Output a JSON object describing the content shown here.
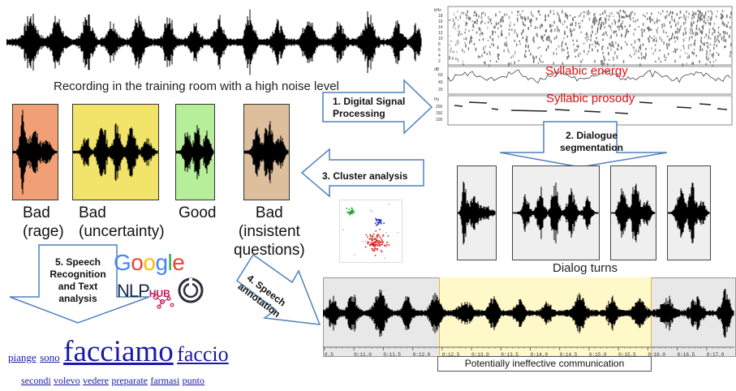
{
  "top_recording": {
    "caption": "Recording in the training room with a high noise level"
  },
  "clusters": [
    {
      "label_line1": "Bad",
      "label_line2": "(rage)",
      "color": "#f0a074"
    },
    {
      "label_line1": "Bad",
      "label_line2": "(uncertainty)",
      "color": "#f2e46a"
    },
    {
      "label_line1": "Good",
      "label_line2": "",
      "color": "#b6ee9a"
    },
    {
      "label_line1": "Bad",
      "label_line2": "(insistent",
      "label_line3": "questions)",
      "color": "#ddbf9e"
    }
  ],
  "steps": {
    "step1": {
      "line1": "1. Digital Signal",
      "line2": "Processing"
    },
    "step2": {
      "line1": "2. Dialogue",
      "line2": "segmentation"
    },
    "step3": {
      "line1": "3. Cluster analysis"
    },
    "step4": {
      "line1": "4. Speech",
      "line2": "annotation"
    },
    "step5": {
      "line1": "5. Speech",
      "line2": "Recognition",
      "line3": "and Text",
      "line4": "analysis"
    }
  },
  "spectrogram": {
    "energy_label": "Syllabic energy",
    "prosody_label": "Syllabic prosody",
    "freq_unit": "kHz",
    "freq_ticks": [
      "18",
      "16",
      "14",
      "12",
      "10",
      "8",
      "6",
      "4",
      "2"
    ],
    "energy_unit": "dB",
    "energy_ticks": [
      "60",
      "40",
      "20"
    ],
    "pitch_unit": "Hz",
    "pitch_ticks": [
      "200",
      "150",
      "100"
    ]
  },
  "dialog_turns": {
    "caption": "Dialog turns"
  },
  "annotation": {
    "caption": "Potentially ineffective communication",
    "timeline_ticks": [
      "0.5",
      "0:11.0",
      "0:11.5",
      "0:12.0",
      "0:12.5",
      "0:13.0",
      "0:13.5",
      "0:14.0",
      "0:14.5",
      "0:15.0",
      "0:15.5",
      "0:16.0",
      "0:16.5",
      "0:17.0"
    ],
    "highlight_color": "#fff8c8"
  },
  "logos": {
    "google": [
      "G",
      "o",
      "o",
      "g",
      "l",
      "e"
    ],
    "google_colors": [
      "#4285F4",
      "#EA4335",
      "#FBBC05",
      "#4285F4",
      "#34A853",
      "#EA4335"
    ],
    "nlphub_part1": "NLP",
    "nlphub_part2": "HUB"
  },
  "words": {
    "row1": [
      {
        "text": "piange",
        "size": "small"
      },
      {
        "text": "sono",
        "size": "small"
      },
      {
        "text": "facciamo",
        "size": "large"
      },
      {
        "text": "faccio",
        "size": "medium"
      }
    ],
    "row2": [
      "secondi",
      "volevo",
      "vedere",
      "preparate",
      "farmasi",
      "punto"
    ]
  }
}
